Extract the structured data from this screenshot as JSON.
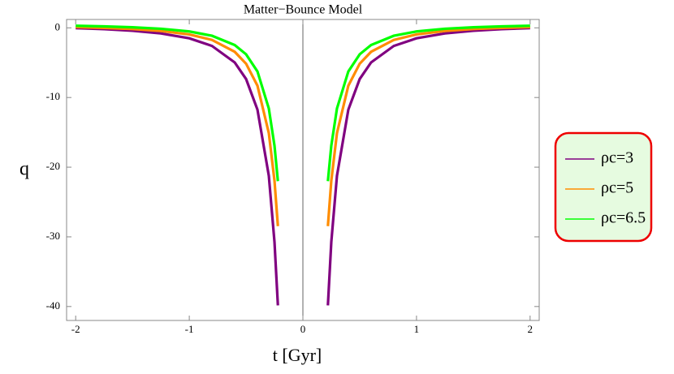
{
  "chart_data": {
    "type": "line",
    "title": "Matter−Bounce Model",
    "xlabel": "t [Gyr]",
    "ylabel": "q",
    "x": [
      -2,
      -1.75,
      -1.5,
      -1.25,
      -1,
      -0.8,
      -0.6,
      -0.5,
      -0.4,
      -0.3,
      -0.25,
      -0.22,
      0,
      0.22,
      0.25,
      0.3,
      0.4,
      0.5,
      0.6,
      0.8,
      1,
      1.25,
      1.5,
      1.75,
      2
    ],
    "series": [
      {
        "name": "ρc=3",
        "color": "#800080",
        "values": [
          -0.04,
          -0.19,
          -0.42,
          -0.8,
          -1.5,
          -2.6,
          -4.97,
          -7.35,
          -11.74,
          -21.22,
          -30.75,
          -39.84,
          null,
          -39.84,
          -30.75,
          -21.22,
          -11.74,
          -7.35,
          -4.97,
          -2.6,
          -1.5,
          -0.8,
          -0.42,
          -0.19,
          -0.04
        ]
      },
      {
        "name": "ρc=5",
        "color": "#ff8c00",
        "values": [
          0.1,
          -0.01,
          -0.17,
          -0.45,
          -0.95,
          -1.74,
          -3.44,
          -5.15,
          -8.3,
          -15.1,
          -21.95,
          -28.47,
          null,
          -28.47,
          -21.95,
          -15.1,
          -8.3,
          -5.15,
          -3.44,
          -1.74,
          -0.95,
          -0.45,
          -0.17,
          -0.01,
          0.1
        ]
      },
      {
        "name": "ρc=6.5",
        "color": "#00ff00",
        "values": [
          0.3,
          0.21,
          0.08,
          -0.13,
          -0.52,
          -1.14,
          -2.47,
          -3.8,
          -6.26,
          -11.57,
          -16.92,
          -22.01,
          null,
          -22.01,
          -16.92,
          -11.57,
          -6.26,
          -3.8,
          -2.47,
          -1.14,
          -0.52,
          -0.13,
          0.08,
          0.21,
          0.3
        ]
      }
    ],
    "xlim": [
      -2.08,
      2.08
    ],
    "ylim": [
      -42,
      1.2
    ],
    "xticks": [
      -2,
      -1,
      0,
      1,
      2
    ],
    "yticks": [
      0,
      -10,
      -20,
      -30,
      -40
    ],
    "legend": "right"
  }
}
